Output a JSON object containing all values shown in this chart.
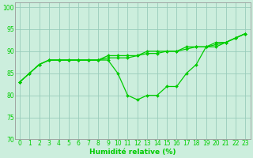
{
  "title": "",
  "xlabel": "Humidité relative (%)",
  "ylabel": "",
  "xlim": [
    -0.5,
    23.5
  ],
  "ylim": [
    70,
    101
  ],
  "yticks": [
    70,
    75,
    80,
    85,
    90,
    95,
    100
  ],
  "xticks": [
    0,
    1,
    2,
    3,
    4,
    5,
    6,
    7,
    8,
    9,
    10,
    11,
    12,
    13,
    14,
    15,
    16,
    17,
    18,
    19,
    20,
    21,
    22,
    23
  ],
  "line1_x": [
    0,
    1,
    2,
    3,
    4,
    5,
    6,
    7,
    8,
    9,
    10,
    11,
    12,
    13,
    14,
    15,
    16,
    17,
    18,
    19,
    20,
    21,
    22,
    23
  ],
  "line1_y": [
    83,
    85,
    87,
    88,
    88,
    88,
    88,
    88,
    88,
    88,
    85,
    80,
    79,
    80,
    80,
    82,
    82,
    85,
    87,
    91,
    91,
    92,
    93,
    94
  ],
  "line2_x": [
    0,
    1,
    2,
    3,
    4,
    5,
    6,
    7,
    8,
    9,
    10,
    11,
    12,
    13,
    14,
    15,
    16,
    17,
    18,
    19,
    20,
    21,
    22,
    23
  ],
  "line2_y": [
    83,
    85,
    87,
    88,
    88,
    88,
    88,
    88,
    88,
    89,
    89,
    89,
    89,
    90,
    90,
    90,
    90,
    91,
    91,
    91,
    92,
    92,
    93,
    94
  ],
  "line3_x": [
    0,
    1,
    2,
    3,
    4,
    5,
    6,
    7,
    8,
    9,
    10,
    11,
    12,
    13,
    14,
    15,
    16,
    17,
    18,
    19,
    20,
    21,
    22,
    23
  ],
  "line3_y": [
    83,
    85,
    87,
    88,
    88,
    88,
    88,
    88,
    88,
    88.5,
    88.5,
    88.5,
    89,
    89.5,
    89.5,
    90,
    90,
    90.5,
    91,
    91,
    91.5,
    92,
    93,
    94
  ],
  "line_color": "#00cc00",
  "bg_color": "#cceedd",
  "grid_color": "#99ccbb",
  "marker": "D",
  "marker_size": 2.0,
  "line_width": 0.9
}
